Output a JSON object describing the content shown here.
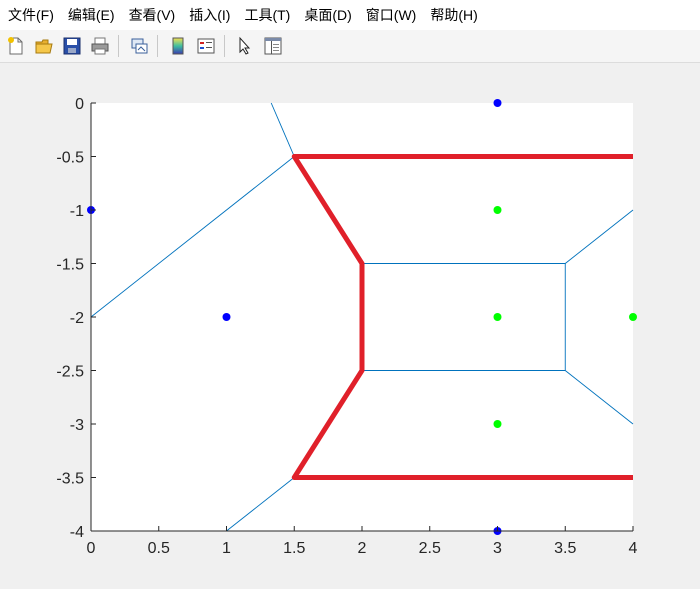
{
  "menu": {
    "items": [
      {
        "label": "文件(F)"
      },
      {
        "label": "编辑(E)"
      },
      {
        "label": "查看(V)"
      },
      {
        "label": "插入(I)"
      },
      {
        "label": "工具(T)"
      },
      {
        "label": "桌面(D)"
      },
      {
        "label": "窗口(W)"
      },
      {
        "label": "帮助(H)"
      }
    ]
  },
  "toolbar": {
    "buttons": [
      {
        "icon": "new-figure-icon"
      },
      {
        "icon": "open-file-icon"
      },
      {
        "icon": "save-icon"
      },
      {
        "icon": "print-icon"
      },
      {
        "icon": "link-plot-icon"
      },
      {
        "icon": "colorbar-icon"
      },
      {
        "icon": "legend-icon"
      },
      {
        "icon": "edit-plot-pointer-icon"
      },
      {
        "icon": "property-inspector-icon"
      }
    ]
  },
  "colors": {
    "voronoi_edge": "#0072bd",
    "path": "#e0202a",
    "blue_point": "#0000ff",
    "green_point": "#00ff00"
  },
  "chart_data": {
    "type": "scatter",
    "title": "",
    "xlabel": "",
    "ylabel": "",
    "xlim": [
      0,
      4
    ],
    "ylim": [
      -4,
      0
    ],
    "x_ticks": [
      "0",
      "0.5",
      "1",
      "1.5",
      "2",
      "2.5",
      "3",
      "3.5",
      "4"
    ],
    "y_ticks": [
      "0",
      "-0.5",
      "-1",
      "-1.5",
      "-2",
      "-2.5",
      "-3",
      "-3.5",
      "-4"
    ],
    "series": [
      {
        "name": "blue points",
        "marker": "dot",
        "points": [
          [
            3,
            0
          ],
          [
            0,
            -1
          ],
          [
            1,
            -2
          ],
          [
            3,
            -4
          ]
        ]
      },
      {
        "name": "green points",
        "marker": "dot",
        "points": [
          [
            3,
            -1
          ],
          [
            3,
            -2
          ],
          [
            4,
            -2
          ],
          [
            3,
            -3
          ]
        ]
      },
      {
        "name": "voronoi edges",
        "segments": [
          [
            [
              1.33,
              0
            ],
            [
              1.5,
              -0.5
            ]
          ],
          [
            [
              1.5,
              -0.5
            ],
            [
              0,
              -2
            ]
          ],
          [
            [
              1.5,
              -0.5
            ],
            [
              4,
              -0.5
            ]
          ],
          [
            [
              1.5,
              -0.5
            ],
            [
              2,
              -1.5
            ]
          ],
          [
            [
              2,
              -1.5
            ],
            [
              3.5,
              -1.5
            ]
          ],
          [
            [
              3.5,
              -1.5
            ],
            [
              4,
              -1
            ]
          ],
          [
            [
              3.5,
              -1.5
            ],
            [
              3.5,
              -2.5
            ]
          ],
          [
            [
              2,
              -1.5
            ],
            [
              2,
              -2.5
            ]
          ],
          [
            [
              2,
              -2.5
            ],
            [
              3.5,
              -2.5
            ]
          ],
          [
            [
              3.5,
              -2.5
            ],
            [
              4,
              -3
            ]
          ],
          [
            [
              2,
              -2.5
            ],
            [
              1.5,
              -3.5
            ]
          ],
          [
            [
              1.5,
              -3.5
            ],
            [
              1,
              -4
            ]
          ],
          [
            [
              1.5,
              -3.5
            ],
            [
              4,
              -3.5
            ]
          ]
        ]
      },
      {
        "name": "highlighted boundary",
        "polyline": [
          [
            4,
            -0.5
          ],
          [
            1.5,
            -0.5
          ],
          [
            2,
            -1.5
          ],
          [
            2,
            -2.5
          ],
          [
            1.5,
            -3.5
          ],
          [
            4,
            -3.5
          ]
        ]
      }
    ]
  }
}
